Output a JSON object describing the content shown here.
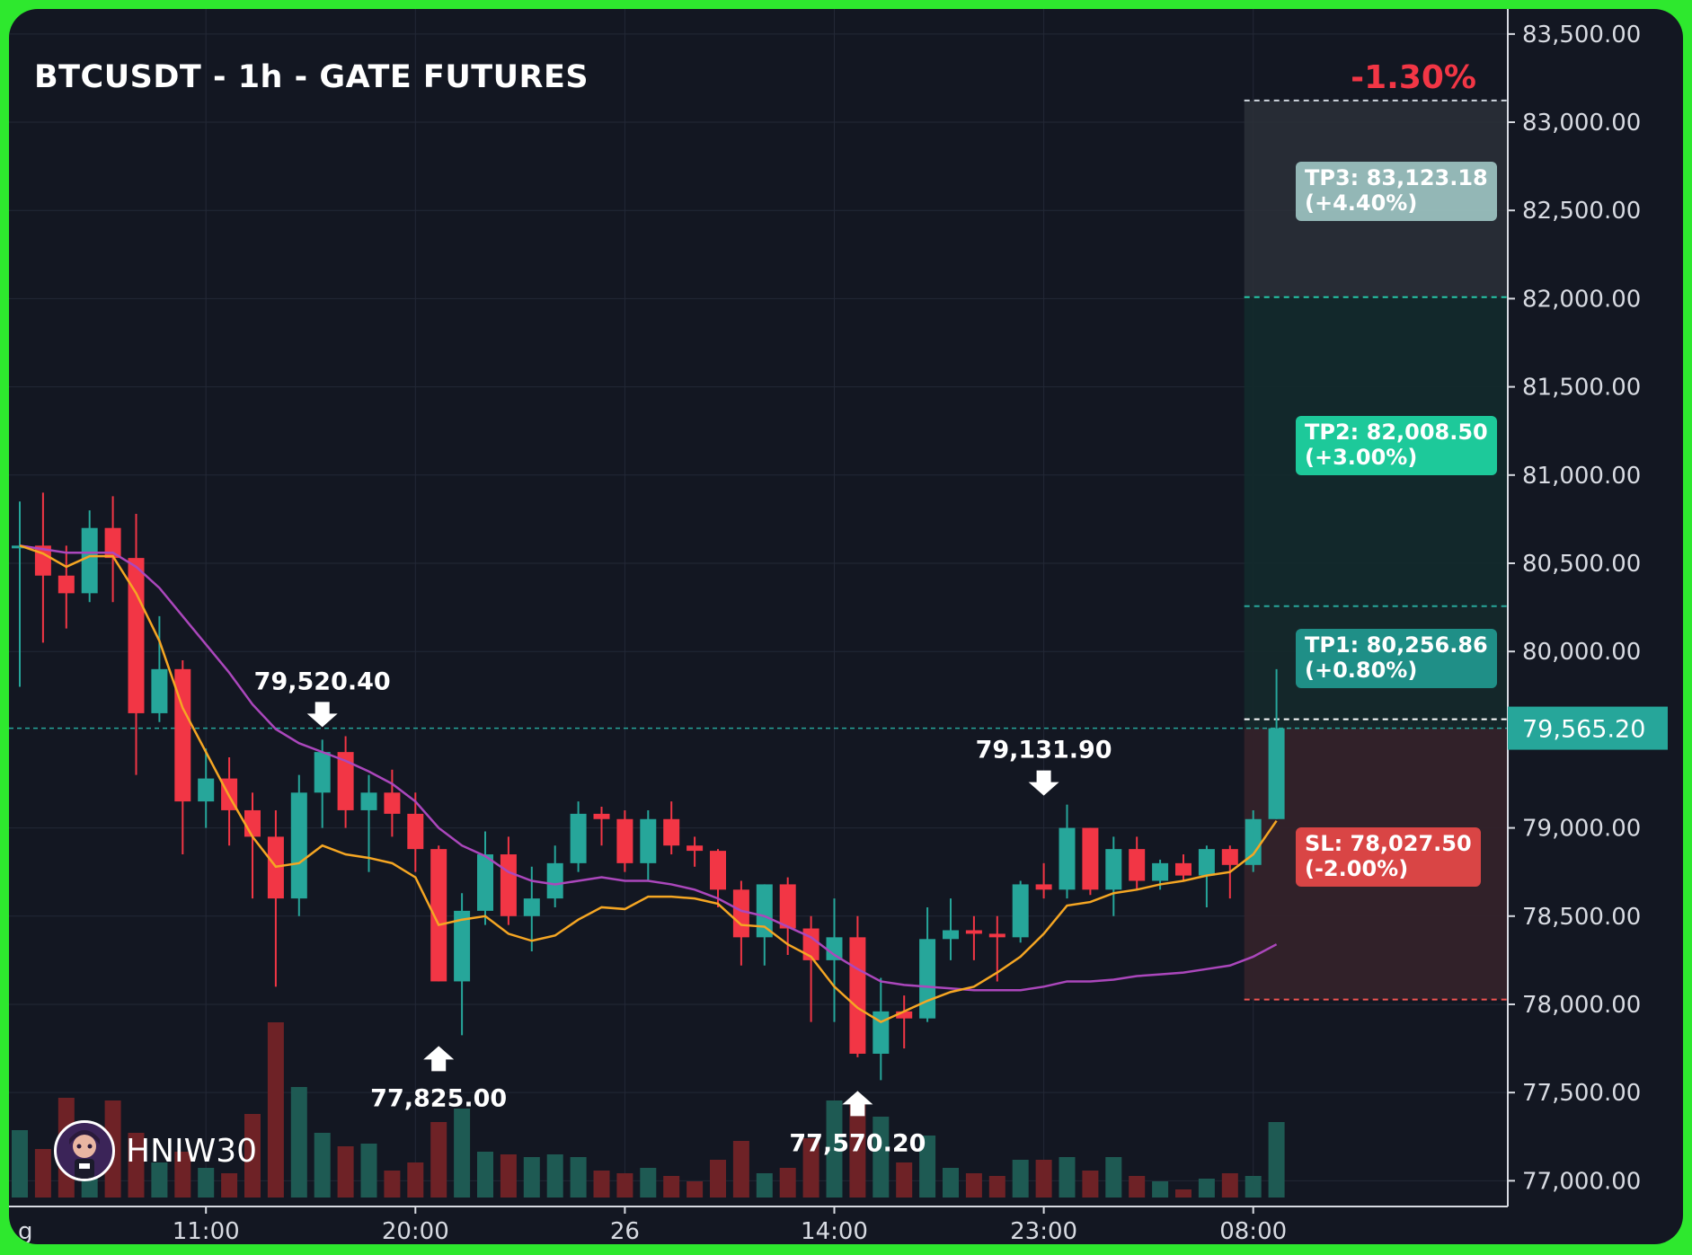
{
  "header": {
    "title": "BTCUSDT - 1h - GATE FUTURES",
    "change": "-1.30%"
  },
  "brand": {
    "name": "HNIW30",
    "icon": "avatar-icon"
  },
  "targets": {
    "tp3": {
      "label": "TP3: 83,123.18",
      "pct": "(+4.40%)",
      "price": 83123.18,
      "color": "#b2dfdb"
    },
    "tp2": {
      "label": "TP2: 82,008.50",
      "pct": "(+3.00%)",
      "price": 82008.5,
      "color": "#1dd1a1"
    },
    "tp1": {
      "label": "TP1: 80,256.86",
      "pct": "(+0.80%)",
      "price": 80256.86,
      "color": "#26a69a"
    },
    "sl": {
      "label": "SL: 78,027.50",
      "pct": "(-2.00%)",
      "price": 78027.5,
      "color": "#ef5350"
    },
    "entry": 79565.2
  },
  "colors": {
    "up": "#26a69a",
    "down": "#f23645",
    "ema_fast": "#f5a623",
    "ema_slow": "#ab47bc"
  },
  "chart_data": {
    "type": "candlestick",
    "title": "BTCUSDT - 1h - GATE FUTURES",
    "ylim": [
      76900,
      83550
    ],
    "yticks": [
      83500,
      83000,
      82500,
      82000,
      81500,
      81000,
      80500,
      80000,
      79000,
      78500,
      78000,
      77500,
      77000
    ],
    "ytick_labels": [
      "83,500.00",
      "83,000.00",
      "82,500.00",
      "82,000.00",
      "81,500.00",
      "81,000.00",
      "80,500.00",
      "80,000.00",
      "79,000.00",
      "78,500.00",
      "78,000.00",
      "77,500.00",
      "77,000.00"
    ],
    "xtick_labels": [
      {
        "label": "g",
        "bar": -0.1
      },
      {
        "label": "11:00",
        "bar": 8
      },
      {
        "label": "20:00",
        "bar": 17
      },
      {
        "label": "26",
        "bar": 26
      },
      {
        "label": "14:00",
        "bar": 35
      },
      {
        "label": "23:00",
        "bar": 44
      },
      {
        "label": "08:00",
        "bar": 53
      }
    ],
    "current_price": {
      "value": 79565.2,
      "label": "79,565.20"
    },
    "annotations": [
      {
        "label": "79,520.40",
        "bar": 13,
        "price": 79520.4,
        "dir": "down"
      },
      {
        "label": "77,825.00",
        "bar": 18,
        "price": 77825.0,
        "dir": "up"
      },
      {
        "label": "77,570.20",
        "bar": 36,
        "price": 77570.2,
        "dir": "up"
      },
      {
        "label": "79,131.90",
        "bar": 44,
        "price": 79131.9,
        "dir": "down"
      }
    ],
    "candles": [
      {
        "o": 80600,
        "h": 80850,
        "l": 79800,
        "c": 80600
      },
      {
        "o": 80600,
        "h": 80900,
        "l": 80050,
        "c": 80430
      },
      {
        "o": 80430,
        "h": 80600,
        "l": 80130,
        "c": 80330
      },
      {
        "o": 80330,
        "h": 80800,
        "l": 80280,
        "c": 80700
      },
      {
        "o": 80700,
        "h": 80880,
        "l": 80280,
        "c": 80530
      },
      {
        "o": 80530,
        "h": 80780,
        "l": 79300,
        "c": 79650
      },
      {
        "o": 79650,
        "h": 80200,
        "l": 79600,
        "c": 79900
      },
      {
        "o": 79900,
        "h": 79950,
        "l": 78850,
        "c": 79150
      },
      {
        "o": 79150,
        "h": 79450,
        "l": 79000,
        "c": 79280
      },
      {
        "o": 79280,
        "h": 79400,
        "l": 78900,
        "c": 79100
      },
      {
        "o": 79100,
        "h": 79200,
        "l": 78600,
        "c": 78950
      },
      {
        "o": 78950,
        "h": 79100,
        "l": 78100,
        "c": 78600
      },
      {
        "o": 78600,
        "h": 79300,
        "l": 78500,
        "c": 79200
      },
      {
        "o": 79200,
        "h": 79500,
        "l": 79000,
        "c": 79430
      },
      {
        "o": 79430,
        "h": 79520,
        "l": 79000,
        "c": 79100
      },
      {
        "o": 79100,
        "h": 79300,
        "l": 78750,
        "c": 79200
      },
      {
        "o": 79200,
        "h": 79330,
        "l": 78950,
        "c": 79080
      },
      {
        "o": 79080,
        "h": 79200,
        "l": 78750,
        "c": 78880
      },
      {
        "o": 78880,
        "h": 78900,
        "l": 78130,
        "c": 78130
      },
      {
        "o": 78130,
        "h": 78630,
        "l": 77825,
        "c": 78530
      },
      {
        "o": 78530,
        "h": 78980,
        "l": 78450,
        "c": 78850
      },
      {
        "o": 78850,
        "h": 78950,
        "l": 78450,
        "c": 78500
      },
      {
        "o": 78500,
        "h": 78780,
        "l": 78300,
        "c": 78600
      },
      {
        "o": 78600,
        "h": 78900,
        "l": 78550,
        "c": 78800
      },
      {
        "o": 78800,
        "h": 79150,
        "l": 78750,
        "c": 79080
      },
      {
        "o": 79080,
        "h": 79120,
        "l": 78900,
        "c": 79050
      },
      {
        "o": 79050,
        "h": 79100,
        "l": 78750,
        "c": 78800
      },
      {
        "o": 78800,
        "h": 79100,
        "l": 78700,
        "c": 79050
      },
      {
        "o": 79050,
        "h": 79150,
        "l": 78850,
        "c": 78900
      },
      {
        "o": 78900,
        "h": 78950,
        "l": 78780,
        "c": 78870
      },
      {
        "o": 78870,
        "h": 78880,
        "l": 78550,
        "c": 78650
      },
      {
        "o": 78650,
        "h": 78700,
        "l": 78220,
        "c": 78380
      },
      {
        "o": 78380,
        "h": 78680,
        "l": 78220,
        "c": 78680
      },
      {
        "o": 78680,
        "h": 78720,
        "l": 78280,
        "c": 78430
      },
      {
        "o": 78430,
        "h": 78500,
        "l": 77900,
        "c": 78250
      },
      {
        "o": 78250,
        "h": 78600,
        "l": 77900,
        "c": 78380
      },
      {
        "o": 78380,
        "h": 78500,
        "l": 77700,
        "c": 77720
      },
      {
        "o": 77720,
        "h": 78150,
        "l": 77570,
        "c": 77960
      },
      {
        "o": 77960,
        "h": 78050,
        "l": 77750,
        "c": 77920
      },
      {
        "o": 77920,
        "h": 78550,
        "l": 77900,
        "c": 78370
      },
      {
        "o": 78370,
        "h": 78600,
        "l": 78250,
        "c": 78420
      },
      {
        "o": 78420,
        "h": 78500,
        "l": 78250,
        "c": 78400
      },
      {
        "o": 78400,
        "h": 78500,
        "l": 78130,
        "c": 78380
      },
      {
        "o": 78380,
        "h": 78700,
        "l": 78350,
        "c": 78680
      },
      {
        "o": 78680,
        "h": 78800,
        "l": 78600,
        "c": 78650
      },
      {
        "o": 78650,
        "h": 79132,
        "l": 78600,
        "c": 79000
      },
      {
        "o": 79000,
        "h": 79000,
        "l": 78620,
        "c": 78650
      },
      {
        "o": 78650,
        "h": 78950,
        "l": 78500,
        "c": 78880
      },
      {
        "o": 78880,
        "h": 78950,
        "l": 78650,
        "c": 78700
      },
      {
        "o": 78700,
        "h": 78820,
        "l": 78650,
        "c": 78800
      },
      {
        "o": 78800,
        "h": 78850,
        "l": 78700,
        "c": 78730
      },
      {
        "o": 78730,
        "h": 78900,
        "l": 78550,
        "c": 78880
      },
      {
        "o": 78880,
        "h": 78900,
        "l": 78600,
        "c": 78790
      },
      {
        "o": 78790,
        "h": 79100,
        "l": 78750,
        "c": 79050
      },
      {
        "o": 79050,
        "h": 79900,
        "l": 79050,
        "c": 79565
      }
    ],
    "volume": [
      2.5,
      1.8,
      3.7,
      1.2,
      3.6,
      2.4,
      1.3,
      1.7,
      1.1,
      0.9,
      3.1,
      6.5,
      4.1,
      2.4,
      1.9,
      2.0,
      1.0,
      1.3,
      2.8,
      3.3,
      1.7,
      1.6,
      1.5,
      1.6,
      1.5,
      1.0,
      0.9,
      1.1,
      0.8,
      0.6,
      1.4,
      2.1,
      0.9,
      1.1,
      2.2,
      3.6,
      3.7,
      3.0,
      1.3,
      2.3,
      1.1,
      0.9,
      0.8,
      1.4,
      1.4,
      1.5,
      1.0,
      1.5,
      0.8,
      0.6,
      0.3,
      0.7,
      0.9,
      0.8,
      2.8
    ],
    "ema_fast": [
      80600,
      80555,
      80480,
      80540,
      80540,
      80330,
      80060,
      79680,
      79430,
      79180,
      78950,
      78780,
      78800,
      78900,
      78850,
      78830,
      78800,
      78720,
      78450,
      78480,
      78500,
      78400,
      78360,
      78390,
      78480,
      78550,
      78540,
      78610,
      78610,
      78600,
      78570,
      78450,
      78440,
      78340,
      78270,
      78100,
      77980,
      77900,
      77960,
      78020,
      78070,
      78100,
      78180,
      78270,
      78400,
      78560,
      78580,
      78630,
      78650,
      78680,
      78700,
      78730,
      78750,
      78850,
      79040
    ],
    "ema_slow": [
      80600,
      80580,
      80560,
      80560,
      80560,
      80480,
      80360,
      80200,
      80040,
      79880,
      79700,
      79560,
      79480,
      79430,
      79380,
      79320,
      79250,
      79150,
      79000,
      78900,
      78840,
      78750,
      78700,
      78680,
      78700,
      78720,
      78700,
      78700,
      78680,
      78650,
      78600,
      78530,
      78500,
      78440,
      78380,
      78280,
      78200,
      78130,
      78110,
      78100,
      78090,
      78080,
      78080,
      78080,
      78100,
      78130,
      78130,
      78140,
      78160,
      78170,
      78180,
      78200,
      78220,
      78270,
      78340
    ]
  }
}
